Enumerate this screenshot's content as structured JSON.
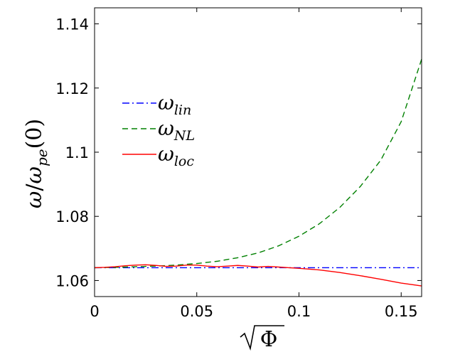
{
  "chart_data": {
    "type": "line",
    "xlabel": "√Φ",
    "ylabel": "ω/ωpe(0)",
    "xlim": [
      0,
      0.16
    ],
    "ylim": [
      1.055,
      1.145
    ],
    "x_ticks": [
      0,
      0.05,
      0.1,
      0.15
    ],
    "x_tick_labels": [
      "0",
      "0.05",
      "0.1",
      "0.15"
    ],
    "y_ticks": [
      1.06,
      1.08,
      1.1,
      1.12,
      1.14
    ],
    "y_tick_labels": [
      "1.06",
      "1.08",
      "1.1",
      "1.12",
      "1.14"
    ],
    "grid": false,
    "legend_position": "upper-left",
    "series": [
      {
        "name": "ωlin",
        "legend_base": "ω",
        "legend_sub": "lin",
        "color": "#0000ff",
        "style": "dash-dot",
        "x": [
          0,
          0.02,
          0.04,
          0.06,
          0.08,
          0.1,
          0.12,
          0.14,
          0.16
        ],
        "y": [
          1.064,
          1.064,
          1.064,
          1.064,
          1.064,
          1.064,
          1.064,
          1.064,
          1.064
        ]
      },
      {
        "name": "ωNL",
        "legend_base": "ω",
        "legend_sub": "NL",
        "color": "#008000",
        "style": "dashed",
        "x": [
          0,
          0.01,
          0.02,
          0.03,
          0.04,
          0.05,
          0.06,
          0.07,
          0.08,
          0.09,
          0.1,
          0.11,
          0.12,
          0.13,
          0.14,
          0.15,
          0.16
        ],
        "y": [
          1.064,
          1.0641,
          1.0643,
          1.0645,
          1.0648,
          1.0653,
          1.066,
          1.0671,
          1.0686,
          1.0708,
          1.0738,
          1.0777,
          1.0828,
          1.0893,
          1.0975,
          1.1095,
          1.129
        ]
      },
      {
        "name": "ωloc",
        "legend_base": "ω",
        "legend_sub": "loc",
        "color": "#ff0000",
        "style": "solid",
        "x": [
          0,
          0.005,
          0.01,
          0.015,
          0.02,
          0.025,
          0.03,
          0.035,
          0.04,
          0.045,
          0.05,
          0.055,
          0.06,
          0.065,
          0.07,
          0.075,
          0.08,
          0.085,
          0.09,
          0.095,
          0.1,
          0.11,
          0.12,
          0.13,
          0.14,
          0.15,
          0.16
        ],
        "y": [
          1.064,
          1.0641,
          1.0643,
          1.0646,
          1.0648,
          1.0649,
          1.0647,
          1.0644,
          1.0645,
          1.0648,
          1.0648,
          1.0645,
          1.0643,
          1.0645,
          1.0647,
          1.0645,
          1.0642,
          1.0644,
          1.0642,
          1.064,
          1.0638,
          1.0633,
          1.0625,
          1.0615,
          1.0604,
          1.0592,
          1.0583
        ]
      }
    ]
  }
}
